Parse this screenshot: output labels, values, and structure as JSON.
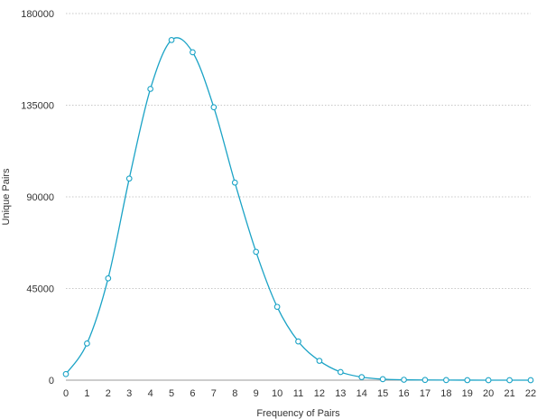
{
  "chart_data": {
    "type": "line",
    "title": "",
    "xlabel": "Frequency of Pairs",
    "ylabel": "Unique Pairs",
    "x": [
      0,
      1,
      2,
      3,
      4,
      5,
      6,
      7,
      8,
      9,
      10,
      11,
      12,
      13,
      14,
      15,
      16,
      17,
      18,
      19,
      20,
      21,
      22
    ],
    "series": [
      {
        "values": [
          3000,
          18000,
          50000,
          99000,
          143000,
          167000,
          161000,
          134000,
          97000,
          63000,
          36000,
          19000,
          9500,
          4000,
          1500,
          500,
          200,
          100,
          50,
          20,
          10,
          5,
          2
        ],
        "color": "#1ba3c6"
      }
    ],
    "ylim": [
      0,
      180000
    ],
    "yticks": [
      "0",
      "45000",
      "90000",
      "135000",
      "180000"
    ],
    "xticks": [
      "0",
      "1",
      "2",
      "3",
      "4",
      "5",
      "6",
      "7",
      "8",
      "9",
      "10",
      "11",
      "12",
      "13",
      "14",
      "15",
      "16",
      "17",
      "18",
      "19",
      "20",
      "21",
      "22"
    ],
    "grid": true,
    "smooth": true
  }
}
